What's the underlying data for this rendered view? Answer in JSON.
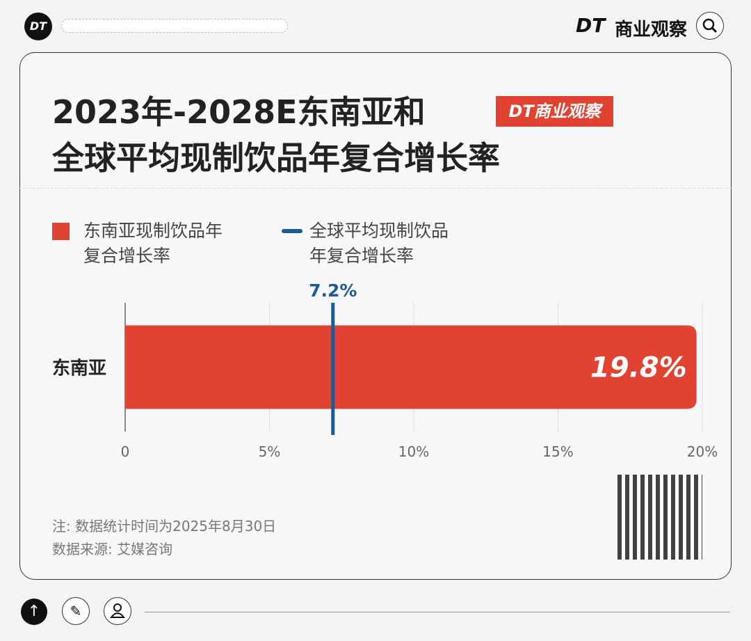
{
  "header": {
    "logo": "DT",
    "brand_mark": "DT",
    "brand": "商业观察"
  },
  "chart_data": {
    "type": "bar",
    "orientation": "horizontal",
    "title": [
      "2023年-2028E东南亚和",
      "全球平均现制饮品年复合增长率"
    ],
    "badge": "DT商业观察",
    "categories": [
      "东南亚"
    ],
    "series": [
      {
        "name": "东南亚现制饮品年复合增长率",
        "color": "#e24232",
        "values": [
          19.8
        ],
        "value_labels": [
          "19.8%"
        ]
      }
    ],
    "reference_line": {
      "name": "全球平均现制饮品年复合增长率",
      "color": "#1b5c96",
      "value": 7.2,
      "label": "7.2%"
    },
    "xlim": [
      0,
      20
    ],
    "xticks": [
      0,
      {
        "value": 5,
        "label": "5%"
      },
      {
        "value": 10,
        "label": "10%"
      },
      {
        "value": 15,
        "label": "15%"
      },
      {
        "value": 20,
        "label": "20%"
      }
    ],
    "grid": true
  },
  "notes": [
    "注: 数据统计时间为2025年8月30日",
    "数据来源: 艾媒咨询"
  ]
}
